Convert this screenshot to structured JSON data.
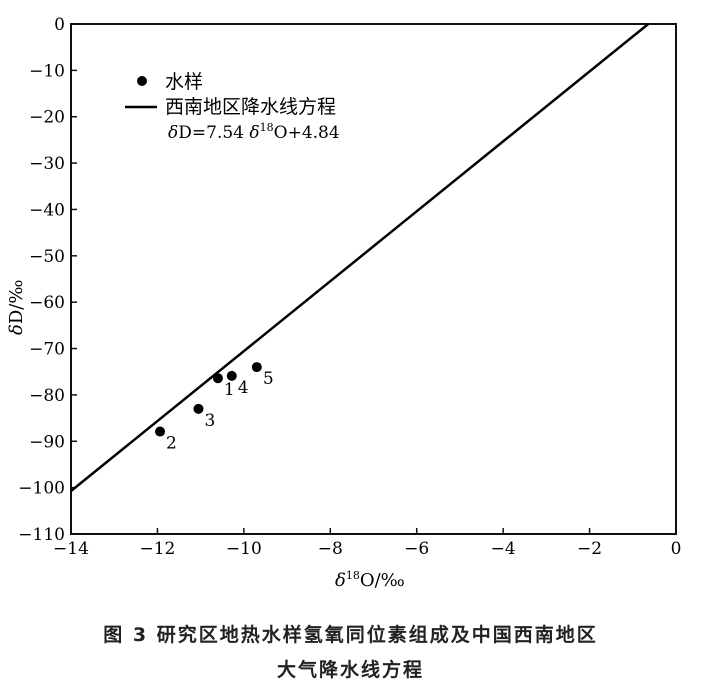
{
  "chart_data": {
    "type": "scatter",
    "xlabel": "δ18O/‰",
    "ylabel": "δD/‰",
    "xlim": [
      -14,
      0
    ],
    "ylim": [
      -110,
      0
    ],
    "xticks": [
      -14,
      -12,
      -10,
      -8,
      -6,
      -4,
      -2,
      0
    ],
    "yticks": [
      0,
      -10,
      -20,
      -30,
      -40,
      -50,
      -60,
      -70,
      -80,
      -90,
      -100,
      -110
    ],
    "grid": false,
    "legend_position": "top-left",
    "series": [
      {
        "name": "水样",
        "kind": "points",
        "color": "#000000",
        "points": [
          {
            "label": "1",
            "x": -10.6,
            "y": -76.4
          },
          {
            "label": "2",
            "x": -11.94,
            "y": -87.9
          },
          {
            "label": "3",
            "x": -11.05,
            "y": -83.0
          },
          {
            "label": "4",
            "x": -10.28,
            "y": -75.9
          },
          {
            "label": "5",
            "x": -9.7,
            "y": -74.0
          }
        ]
      },
      {
        "name": "西南地区降水线方程",
        "kind": "line",
        "color": "#000000",
        "slope": 7.54,
        "intercept": 4.84,
        "equation": "δD=7.54 δ18O+4.84"
      }
    ]
  },
  "caption": {
    "line1": "图 3  研究区地热水样氢氧同位素组成及中国西南地区",
    "line2": "大气降水线方程"
  }
}
